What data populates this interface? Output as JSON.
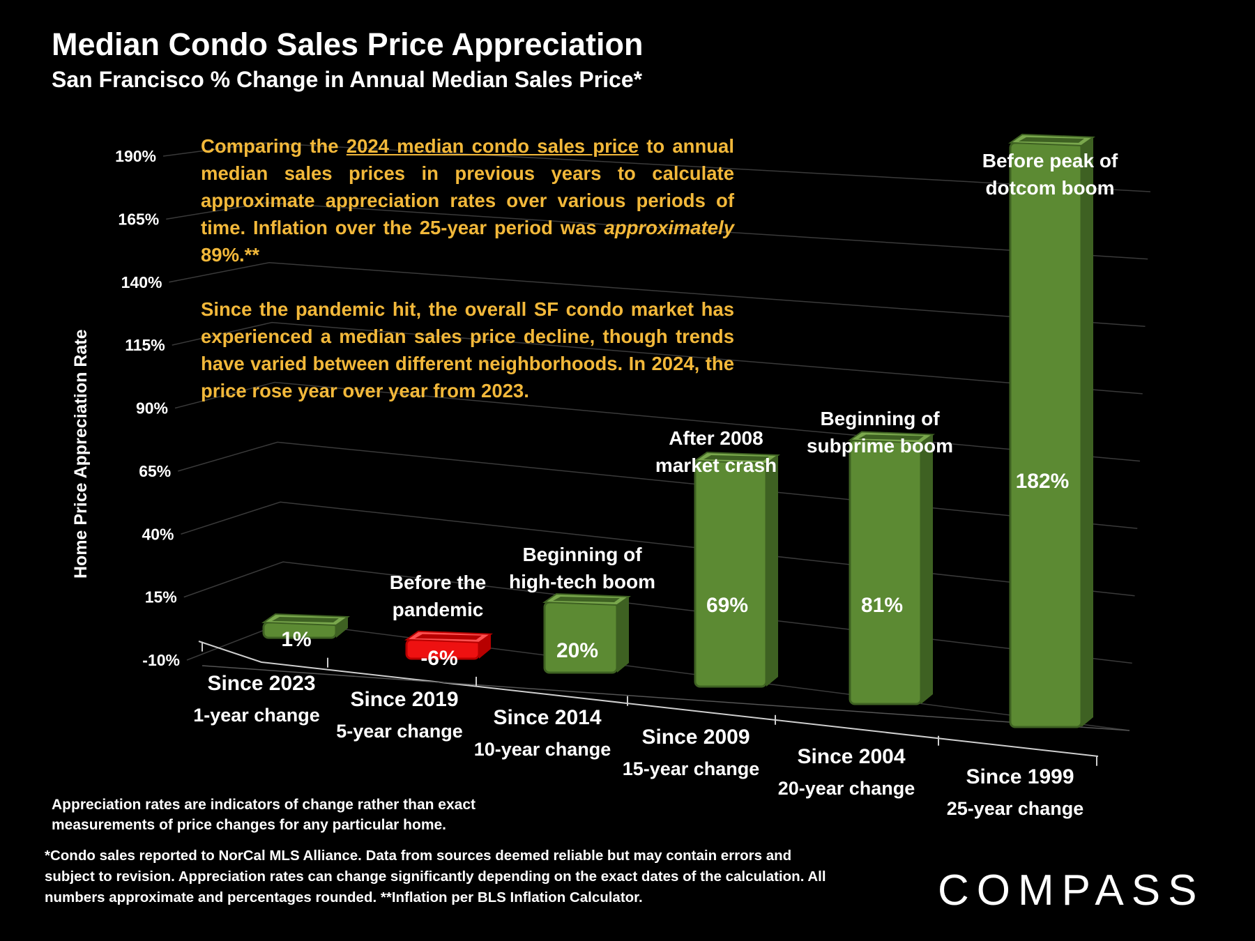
{
  "header": {
    "title": "Median Condo Sales Price Appreciation",
    "subtitle": "San Francisco % Change in Annual Median Sales Price*"
  },
  "notes": {
    "p1_a": "Comparing the ",
    "p1_link": "2024 median condo sales price",
    "p1_b": " to annual median sales prices in previous years to calculate approximate appreciation rates over various periods of time. Inflation over the 25-year period was ",
    "p1_italic": "approximately",
    "p1_c": " 89%.**",
    "p2": "Since the pandemic hit, the overall SF condo market has experienced a median sales price decline, though trends have varied between different neighborhoods. In 2024, the price rose year over year from 2023."
  },
  "chart_data": {
    "type": "bar",
    "ylabel": "Home Price Appreciation Rate",
    "ylim": [
      -10,
      190
    ],
    "yticks": [
      "-10%",
      "15%",
      "40%",
      "65%",
      "90%",
      "115%",
      "140%",
      "165%",
      "190%"
    ],
    "categories": [
      {
        "line1": "Since 2023",
        "line2": "1-year change"
      },
      {
        "line1": "Since 2019",
        "line2": "5-year change"
      },
      {
        "line1": "Since 2014",
        "line2": "10-year change"
      },
      {
        "line1": "Since 2009",
        "line2": "15-year change"
      },
      {
        "line1": "Since 2004",
        "line2": "20-year change"
      },
      {
        "line1": "Since 1999",
        "line2": "25-year change"
      }
    ],
    "values": [
      1,
      -6,
      20,
      69,
      81,
      182
    ],
    "value_labels": [
      "1%",
      "-6%",
      "20%",
      "69%",
      "81%",
      "182%"
    ],
    "annotations": [
      [],
      [
        "Before the",
        "pandemic"
      ],
      [
        "Beginning of",
        "high-tech boom"
      ],
      [
        "After 2008",
        "market crash"
      ],
      [
        "Beginning of",
        "subprime boom"
      ],
      [
        "Before peak of",
        "dotcom boom"
      ]
    ],
    "colors": {
      "positive": "#5c8a33",
      "negative": "#ee1111"
    }
  },
  "footer": {
    "disclaimer": "Appreciation rates are indicators of change rather than exact measurements of price changes for any particular home.",
    "footnote": "*Condo sales reported to NorCal MLS Alliance. Data from sources deemed reliable but may contain errors and subject to revision. Appreciation rates can change significantly depending on the exact dates of the calculation. All numbers  approximate and percentages rounded. **Inflation per BLS Inflation Calculator.",
    "brand": "COMPASS"
  }
}
